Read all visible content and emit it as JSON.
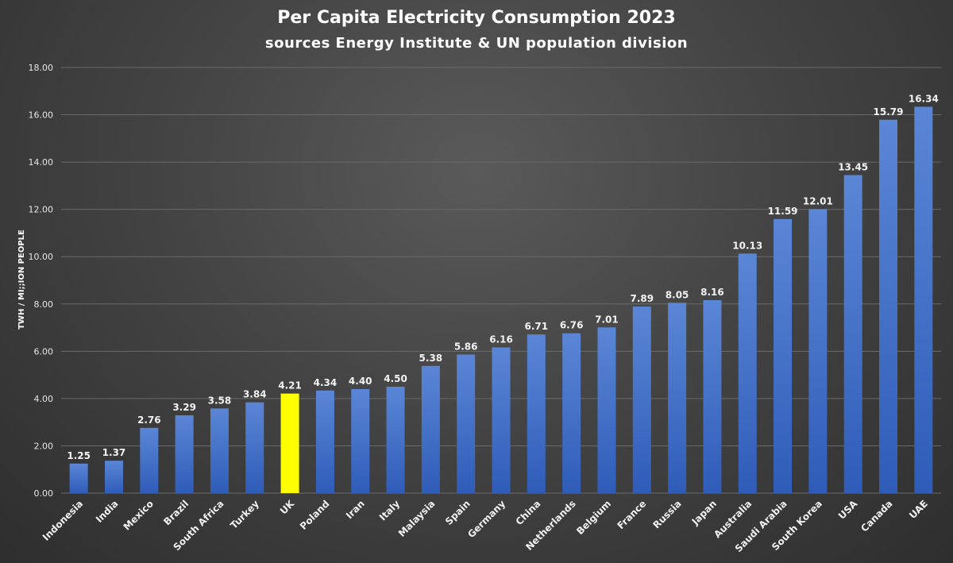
{
  "chart_data": {
    "type": "bar",
    "title": "Per Capita Electricity Consumption 2023",
    "subtitle": "sources Energy Institute & UN population division",
    "ylabel": "TWH / MI;;ION PEOPLE",
    "xlabel": "",
    "ylim": [
      0,
      18
    ],
    "yticks": [
      "0.00",
      "2.00",
      "4.00",
      "6.00",
      "8.00",
      "10.00",
      "12.00",
      "14.00",
      "16.00",
      "18.00"
    ],
    "grid": true,
    "categories": [
      "Indonesia",
      "India",
      "Mexico",
      "Brazil",
      "South Africa",
      "Turkey",
      "UK",
      "Poland",
      "Iran",
      "Italy",
      "Malaysia",
      "Spain",
      "Germany",
      "China",
      "Netherlands",
      "Belgium",
      "France",
      "Russia",
      "Japan",
      "Australia",
      "Saudi Arabia",
      "South Korea",
      "USA",
      "Canada",
      "UAE"
    ],
    "values": [
      1.25,
      1.37,
      2.76,
      3.29,
      3.58,
      3.84,
      4.21,
      4.34,
      4.4,
      4.5,
      5.38,
      5.86,
      6.16,
      6.71,
      6.76,
      7.01,
      7.89,
      8.05,
      8.16,
      10.13,
      11.59,
      12.01,
      13.45,
      15.79,
      16.34
    ],
    "data_labels": [
      "1.25",
      "1.37",
      "2.76",
      "3.29",
      "3.58",
      "3.84",
      "4.21",
      "4.34",
      "4.40",
      "4.50",
      "5.38",
      "5.86",
      "6.16",
      "6.71",
      "6.76",
      "7.01",
      "7.89",
      "8.05",
      "8.16",
      "10.13",
      "11.59",
      "12.01",
      "13.45",
      "15.79",
      "16.34"
    ],
    "highlight_category": "UK",
    "colors": {
      "bar": "#4472c4",
      "highlight": "#ffff00"
    }
  }
}
